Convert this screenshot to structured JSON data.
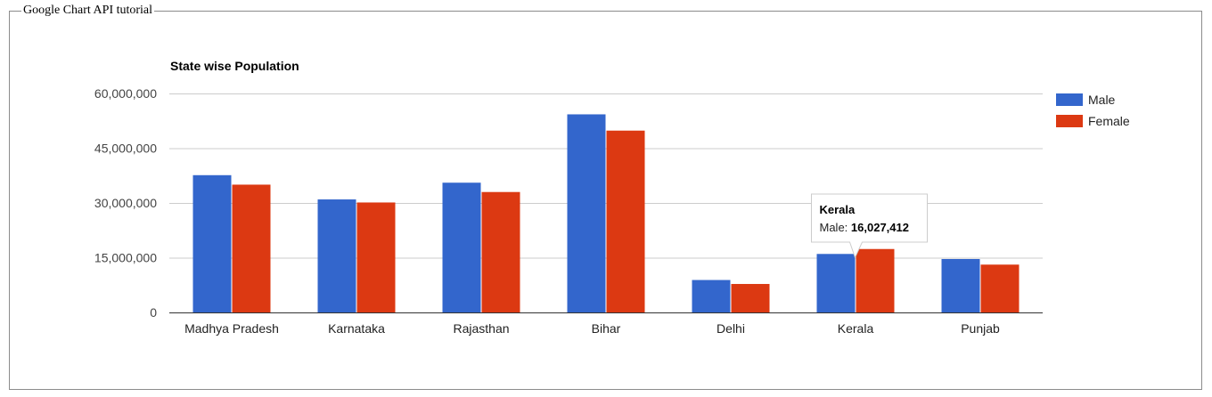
{
  "page": {
    "fieldset_legend": "Google Chart API tutorial"
  },
  "chart_data": {
    "type": "bar",
    "title": "State wise Population",
    "categories": [
      "Madhya Pradesh",
      "Karnataka",
      "Rajasthan",
      "Bihar",
      "Delhi",
      "Kerala",
      "Punjab"
    ],
    "series": [
      {
        "name": "Male",
        "color": "#3366cc",
        "values": [
          37612306,
          30966657,
          35550997,
          54278157,
          8887326,
          16027412,
          14639465
        ]
      },
      {
        "name": "Female",
        "color": "#dc3912",
        "values": [
          35014503,
          30128640,
          32997440,
          49821295,
          7800615,
          17378649,
          13103873
        ]
      }
    ],
    "yticks": [
      "0",
      "15,000,000",
      "30,000,000",
      "45,000,000",
      "60,000,000"
    ],
    "ylim": [
      0,
      60000000
    ],
    "grid": true,
    "legend_position": "right",
    "tooltip": {
      "category": "Kerala",
      "series_label": "Male:",
      "value": "16,027,412"
    }
  }
}
